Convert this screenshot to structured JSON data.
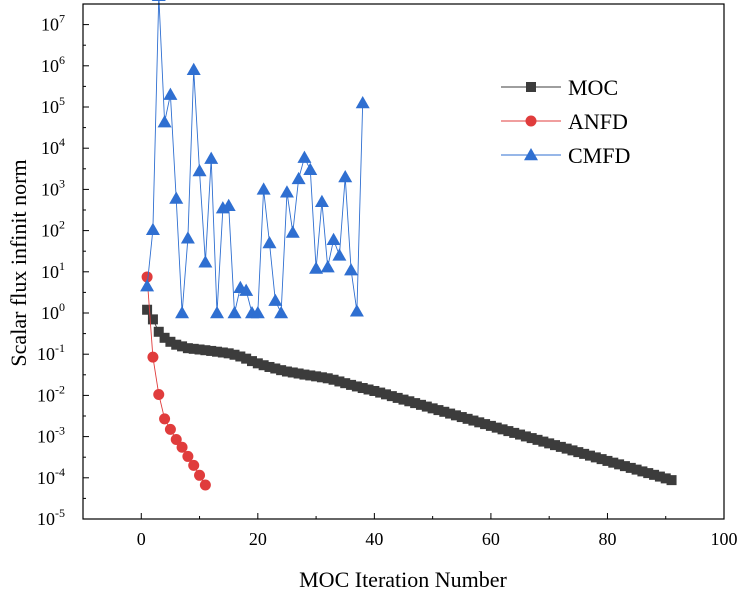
{
  "chart_data": {
    "type": "line",
    "title": "",
    "xlabel": "MOC Iteration Number",
    "ylabel": "Scalar flux infinit norm",
    "yscale": "log",
    "xlim": [
      -10,
      100
    ],
    "ylim_exponent": [
      -5,
      7.5
    ],
    "xticks": [
      0,
      20,
      40,
      60,
      80,
      100
    ],
    "xtick_labels": [
      "0",
      "20",
      "40",
      "60",
      "80",
      "100"
    ],
    "ytick_exponents": [
      -5,
      -4,
      -3,
      -2,
      -1,
      0,
      1,
      2,
      3,
      4,
      5,
      6,
      7
    ],
    "ytick_mantissas": [
      "10",
      "10",
      "10",
      "10",
      "10",
      "10",
      "10",
      "10",
      "10",
      "10",
      "10",
      "10",
      "10"
    ],
    "ytick_powers": [
      "-5",
      "-4",
      "-3",
      "-2",
      "-1",
      "0",
      "1",
      "2",
      "3",
      "4",
      "5",
      "6",
      "7"
    ],
    "legend_position": "top-right",
    "series": [
      {
        "name": "MOC",
        "color": "#3c3c3c",
        "marker": "square",
        "x": [
          1,
          2,
          3,
          4,
          5,
          6,
          7,
          8,
          9,
          10,
          11,
          12,
          13,
          14,
          15,
          16,
          17,
          18,
          19,
          20,
          21,
          22,
          23,
          24,
          25,
          26,
          27,
          28,
          29,
          30,
          31,
          32,
          33,
          34,
          35,
          36,
          37,
          38,
          39,
          40,
          41,
          42,
          43,
          44,
          45,
          46,
          47,
          48,
          49,
          50,
          51,
          52,
          53,
          54,
          55,
          56,
          57,
          58,
          59,
          60,
          61,
          62,
          63,
          64,
          65,
          66,
          67,
          68,
          69,
          70,
          71,
          72,
          73,
          74,
          75,
          76,
          77,
          78,
          79,
          80,
          81,
          82,
          83,
          84,
          85,
          86,
          87,
          88,
          89,
          90,
          91
        ],
        "y": [
          1.2,
          0.7,
          0.35,
          0.25,
          0.2,
          0.17,
          0.155,
          0.14,
          0.135,
          0.13,
          0.125,
          0.12,
          0.115,
          0.11,
          0.105,
          0.097,
          0.088,
          0.078,
          0.068,
          0.06,
          0.054,
          0.049,
          0.045,
          0.041,
          0.038,
          0.036,
          0.034,
          0.032,
          0.0305,
          0.029,
          0.0275,
          0.026,
          0.024,
          0.0218,
          0.0198,
          0.018,
          0.0165,
          0.0151,
          0.0139,
          0.0128,
          0.0117,
          0.0106,
          0.0096,
          0.0087,
          0.0079,
          0.0072,
          0.0065,
          0.0059,
          0.00535,
          0.00485,
          0.0044,
          0.004,
          0.00362,
          0.00328,
          0.00298,
          0.0027,
          0.00245,
          0.00222,
          0.00201,
          0.00182,
          0.00165,
          0.0015,
          0.00136,
          0.00123,
          0.00112,
          0.00101,
          0.00092,
          0.000834,
          0.000756,
          0.000685,
          0.000621,
          0.000563,
          0.000511,
          0.000463,
          0.00042,
          0.000381,
          0.000345,
          0.000313,
          0.000284,
          0.000257,
          0.000233,
          0.000212,
          0.000192,
          0.000174,
          0.000158,
          0.000143,
          0.00013,
          0.000118,
          0.000107,
          9.68e-05,
          8.78e-05
        ]
      },
      {
        "name": "ANFD",
        "color": "#e03c3c",
        "marker": "circle",
        "x": [
          1,
          2,
          3,
          4,
          5,
          6,
          7,
          8,
          9,
          10,
          11
        ],
        "y": [
          7.5,
          0.085,
          0.0105,
          0.0027,
          0.0015,
          0.00085,
          0.00055,
          0.00033,
          0.0002,
          0.000115,
          6.7e-05
        ]
      },
      {
        "name": "CMFD",
        "color": "#2f6fd1",
        "marker": "triangle",
        "x": [
          1,
          2,
          3,
          4,
          5,
          6,
          7,
          8,
          9,
          10,
          11,
          12,
          13,
          14,
          15,
          16,
          17,
          18,
          19,
          20,
          21,
          22,
          23,
          24,
          25,
          26,
          27,
          28,
          29,
          30,
          31,
          32,
          33,
          34,
          35,
          36,
          37,
          38
        ],
        "y": [
          4.5,
          105,
          50000000,
          43000,
          200000,
          600,
          1,
          65,
          800000,
          2800,
          17,
          5600,
          1,
          350,
          400,
          1,
          4.1,
          3.5,
          1,
          1,
          1000,
          50,
          2,
          1,
          850,
          90,
          1800,
          5900,
          3000,
          12,
          500,
          13,
          60,
          25,
          2000,
          11,
          1.1,
          125000
        ]
      }
    ]
  }
}
